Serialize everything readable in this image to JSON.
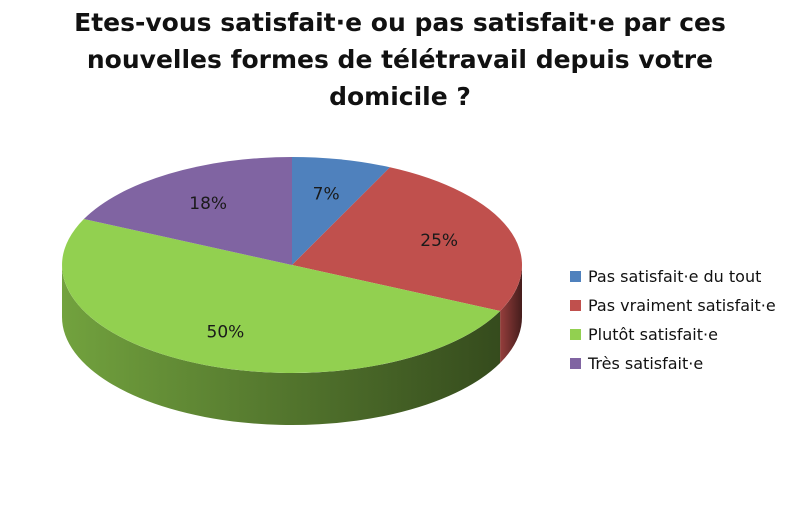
{
  "title": {
    "line1": "Etes-vous satisfait·e ou pas satisfait·e par ces",
    "line2": "nouvelles formes de télétravail depuis votre",
    "line3": "domicile ?"
  },
  "chart_data": {
    "type": "pie",
    "style": "3d",
    "title": "Etes-vous satisfait·e ou pas satisfait·e par ces nouvelles formes de télétravail depuis votre domicile ?",
    "categories": [
      "Pas satisfait·e du tout",
      "Pas vraiment satisfait·e",
      "Plutôt satisfait·e",
      "Très satisfait·e"
    ],
    "values": [
      7,
      25,
      50,
      18
    ],
    "labels": [
      "7%",
      "25%",
      "50%",
      "18%"
    ],
    "colors": [
      "#4f81bd",
      "#c0504d",
      "#92d050",
      "#8064a2"
    ],
    "legend_position": "right"
  }
}
